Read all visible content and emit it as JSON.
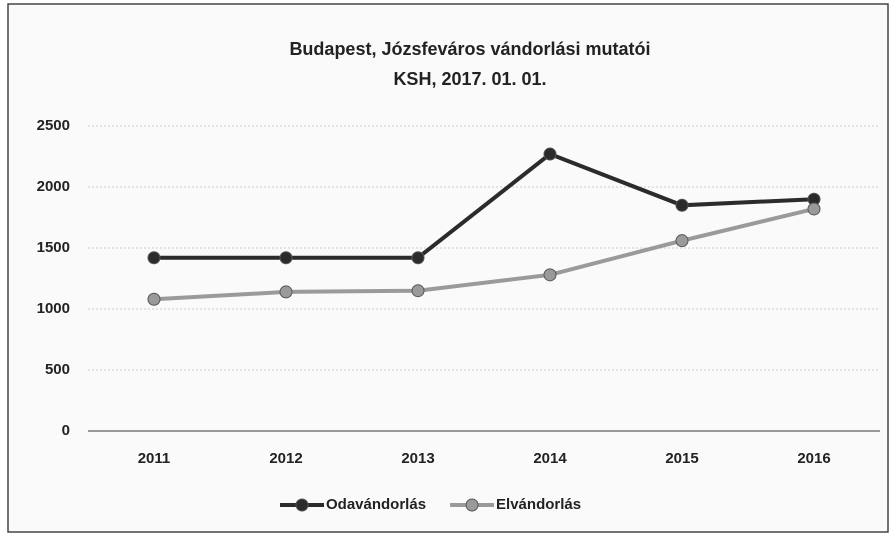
{
  "chart_data": {
    "type": "line",
    "title": "Budapest, Józsfeváros vándorlási mutatói",
    "subtitle": "KSH, 2017. 01. 01.",
    "categories": [
      "2011",
      "2012",
      "2013",
      "2014",
      "2015",
      "2016"
    ],
    "series": [
      {
        "name": "Odavándorlás",
        "color": "#2b2b2b",
        "values": [
          1420,
          1420,
          1420,
          2270,
          1850,
          1900
        ]
      },
      {
        "name": "Elvándorlás",
        "color": "#9a9a9a",
        "values": [
          1080,
          1140,
          1150,
          1280,
          1560,
          1820
        ]
      }
    ],
    "ylim": [
      0,
      2500
    ],
    "yticks": [
      0,
      500,
      1000,
      1500,
      2000,
      2500
    ],
    "grid": true,
    "legend": "bottom"
  }
}
